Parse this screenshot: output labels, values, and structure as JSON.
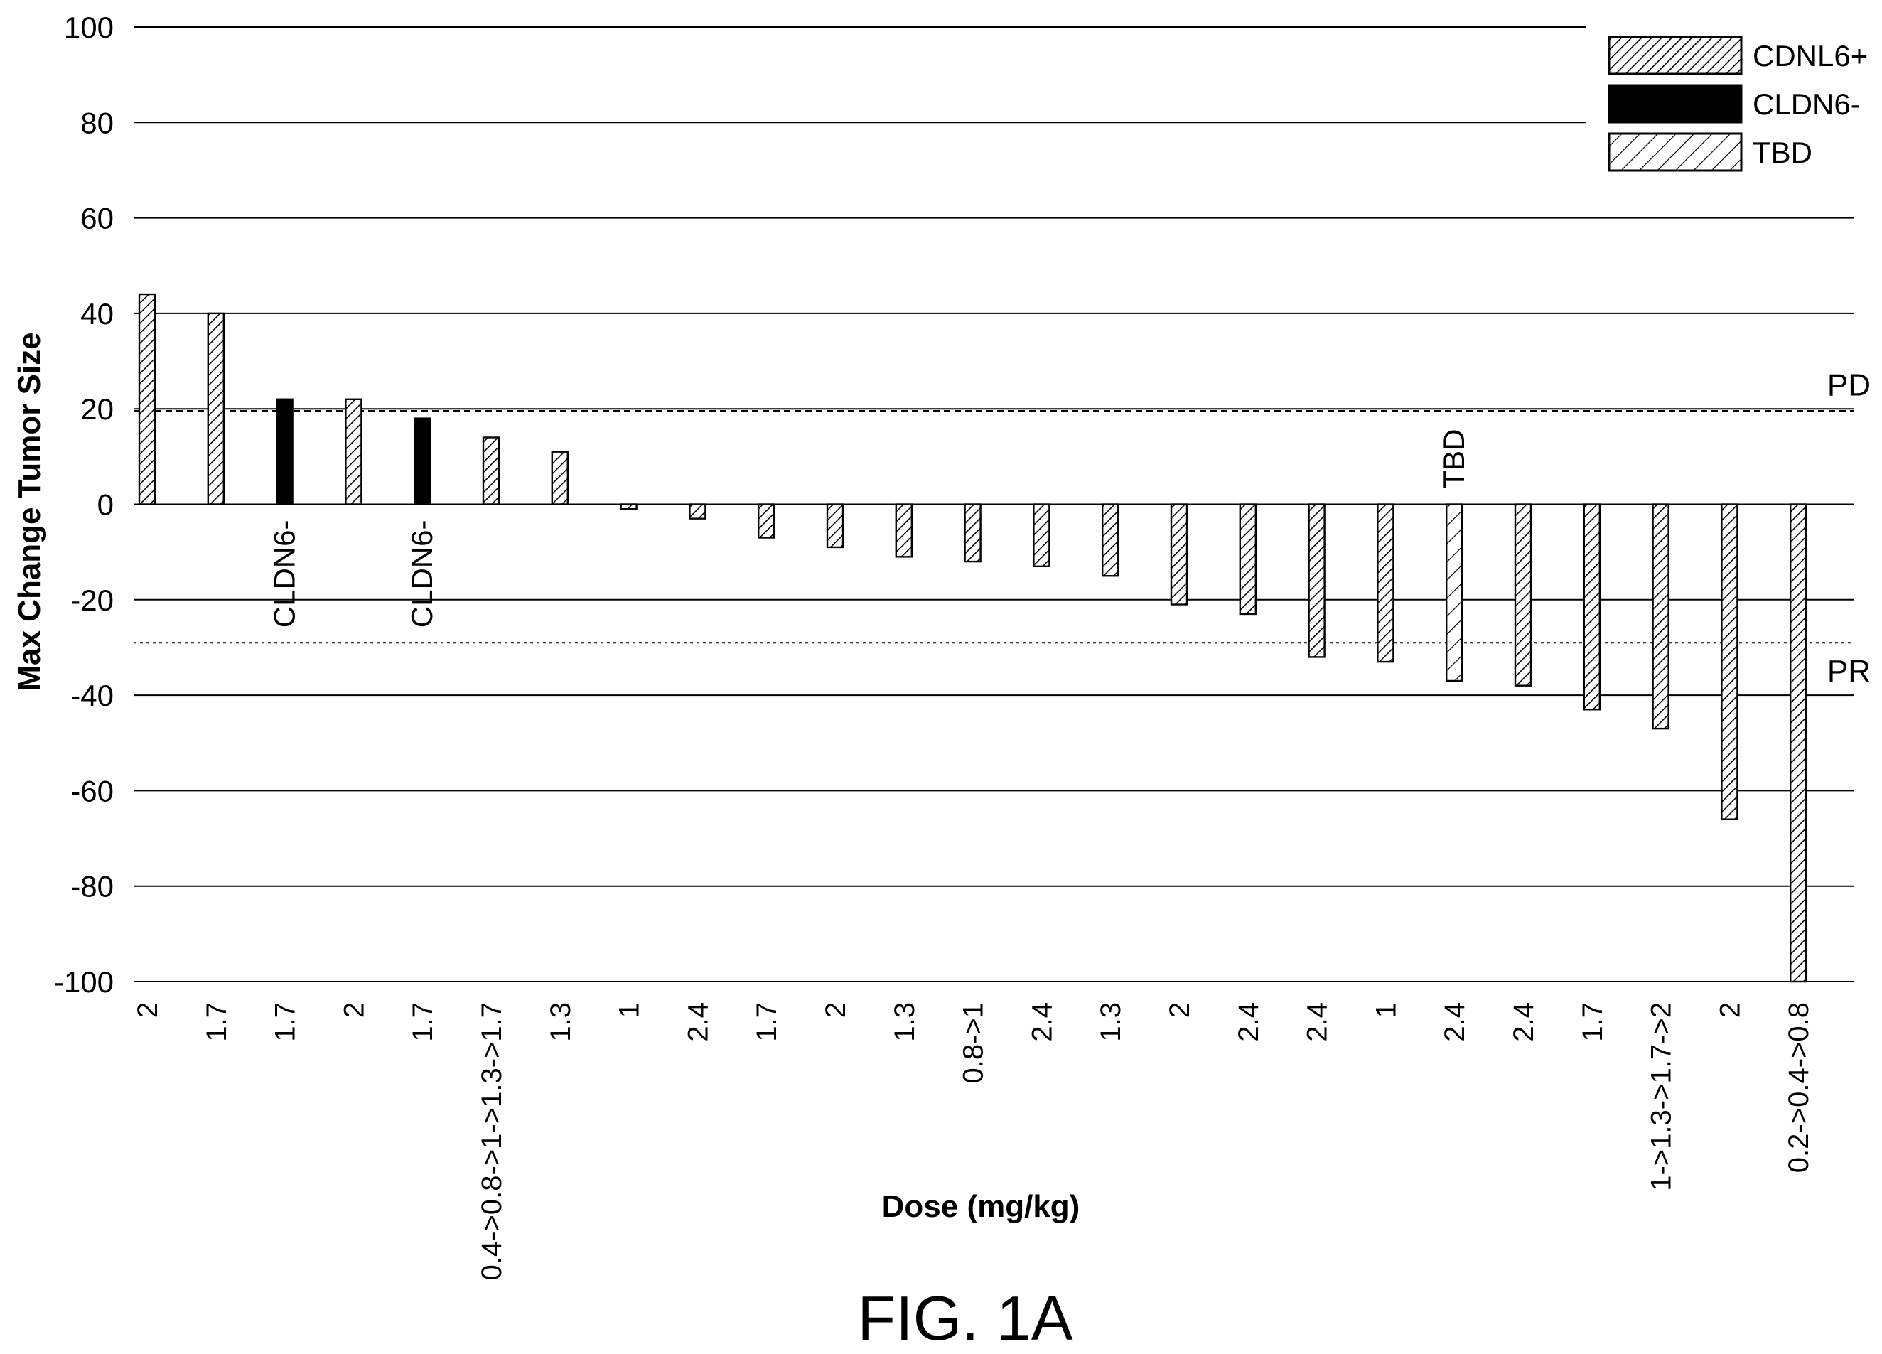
{
  "chart_data": {
    "type": "bar",
    "title": "",
    "xlabel": "Dose (mg/kg)",
    "ylabel": "Max Change Tumor Size",
    "ylim": [
      -100,
      100
    ],
    "yticks": [
      100,
      80,
      60,
      40,
      20,
      0,
      -20,
      -40,
      -60,
      -80,
      -100
    ],
    "grid": true,
    "legend_position": "top-right",
    "categories": [
      "2",
      "1.7",
      "1.7",
      "2",
      "1.7",
      "0.4->0.8->1->1.3->1.7",
      "1.3",
      "1",
      "2.4",
      "1.7",
      "2",
      "1.3",
      "0.8->1",
      "2.4",
      "1.3",
      "2",
      "2.4",
      "2.4",
      "1",
      "2.4",
      "2.4",
      "1.7",
      "1->1.3->1.7->2",
      "2",
      "0.2->0.4->0.8"
    ],
    "values": [
      44,
      40,
      22,
      22,
      18,
      14,
      11,
      -1,
      -3,
      -7,
      -9,
      -11,
      -12,
      -13,
      -15,
      -21,
      -23,
      -32,
      -33,
      -37,
      -38,
      -43,
      -47,
      -66,
      -100
    ],
    "groups": [
      "CDNL6+",
      "CDNL6+",
      "CLDN6-",
      "CDNL6+",
      "CLDN6-",
      "CDNL6+",
      "CDNL6+",
      "CDNL6+",
      "CDNL6+",
      "CDNL6+",
      "CDNL6+",
      "CDNL6+",
      "CDNL6+",
      "CDNL6+",
      "CDNL6+",
      "CDNL6+",
      "CDNL6+",
      "CDNL6+",
      "CDNL6+",
      "TBD",
      "CDNL6+",
      "CDNL6+",
      "CDNL6+",
      "CDNL6+",
      "CDNL6+"
    ],
    "legend": [
      {
        "name": "CDNL6+",
        "pattern": "dense-hatch"
      },
      {
        "name": "CLDN6-",
        "pattern": "solid-black"
      },
      {
        "name": "TBD",
        "pattern": "sparse-hatch"
      }
    ],
    "reference_lines": [
      {
        "label": "PD",
        "value": 19.5,
        "style": "dashed"
      },
      {
        "label": "PR",
        "value": -29,
        "style": "dotted"
      }
    ],
    "bar_annotations": [
      {
        "index": 2,
        "text": "CLDN6-"
      },
      {
        "index": 4,
        "text": "CLDN6-"
      },
      {
        "index": 19,
        "text": "TBD"
      }
    ],
    "caption": "FIG. 1A"
  }
}
